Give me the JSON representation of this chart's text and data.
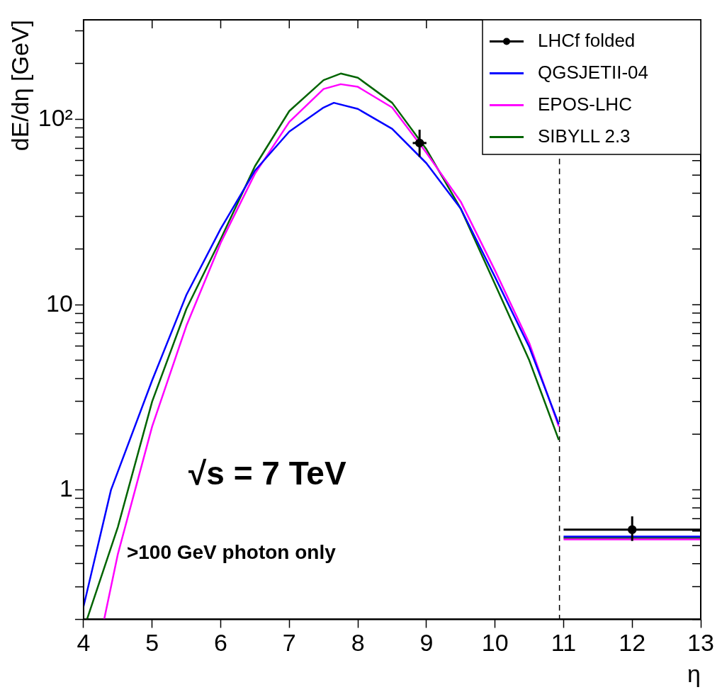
{
  "chart_data": {
    "type": "line",
    "xlabel": "η",
    "ylabel": "dE/dη [GeV]",
    "xlim": [
      4,
      13
    ],
    "xticks": [
      4,
      5,
      6,
      7,
      8,
      9,
      10,
      11,
      12,
      13
    ],
    "ylim": [
      0.2,
      345
    ],
    "log": "y",
    "yticks": [
      {
        "value": 0.2,
        "label": null
      },
      {
        "value": 0.3,
        "label": null
      },
      {
        "value": 0.4,
        "label": null
      },
      {
        "value": 0.5,
        "label": null
      },
      {
        "value": 0.6,
        "label": null
      },
      {
        "value": 0.7,
        "label": null
      },
      {
        "value": 0.8,
        "label": null
      },
      {
        "value": 0.9,
        "label": null
      },
      1,
      {
        "value": 2,
        "label": null
      },
      {
        "value": 3,
        "label": null
      },
      {
        "value": 4,
        "label": null
      },
      {
        "value": 5,
        "label": null
      },
      {
        "value": 6,
        "label": null
      },
      {
        "value": 7,
        "label": null
      },
      {
        "value": 8,
        "label": null
      },
      {
        "value": 9,
        "label": null
      },
      10,
      {
        "value": 20,
        "label": null
      },
      {
        "value": 30,
        "label": null
      },
      {
        "value": 40,
        "label": null
      },
      {
        "value": 50,
        "label": null
      },
      {
        "value": 60,
        "label": null
      },
      {
        "value": 70,
        "label": null
      },
      {
        "value": 80,
        "label": null
      },
      {
        "value": 90,
        "label": null
      },
      {
        "value": 100,
        "label": "10²"
      },
      {
        "value": 200,
        "label": null
      },
      {
        "value": 300,
        "label": null
      }
    ],
    "grid": false,
    "legend": "top right",
    "marker": "none",
    "line_style": "solid",
    "series": [
      {
        "name": "LHCf folded",
        "type": "scatter",
        "marker": "circle",
        "color": "#000000",
        "x": [
          8.9,
          12
        ],
        "values": [
          74.6,
          0.61
        ],
        "errors": [
          [
            62.8,
            88
          ],
          [
            0.53,
            0.72
          ]
        ],
        "xerrors": [
          0.1,
          1
        ]
      },
      {
        "name": "QGSJETII-04",
        "color": "#0000ff",
        "x": [
          4,
          4.4,
          5,
          5.5,
          6,
          6.5,
          7,
          7.5,
          7.65,
          8,
          8.5,
          9,
          9.5,
          10,
          10.5,
          10.93,
          10.97,
          11,
          13
        ],
        "values": [
          0.235,
          1.0,
          3.9,
          11.3,
          25.7,
          53,
          86,
          116,
          123,
          114,
          89,
          58,
          33,
          14.1,
          5.9,
          2.26,
          null,
          0.56,
          0.56
        ]
      },
      {
        "name": "EPOS-LHC",
        "color": "#ff00ff",
        "x": [
          4.3,
          4.5,
          5,
          5.5,
          6,
          6.5,
          7,
          7.5,
          7.75,
          8,
          8.5,
          9,
          9.5,
          10,
          10.5,
          10.93,
          10.97,
          11,
          13
        ],
        "values": [
          0.2,
          0.45,
          2.2,
          7.7,
          21.6,
          51,
          97,
          146,
          155,
          150,
          116,
          66,
          36,
          15.3,
          6.2,
          2.2,
          null,
          0.54,
          0.54
        ]
      },
      {
        "name": "SIBYLL 2.3",
        "color": "#006400",
        "x": [
          4.05,
          4.5,
          5,
          5.5,
          6,
          6.5,
          7,
          7.5,
          7.75,
          8,
          8.5,
          9,
          9.5,
          10,
          10.5,
          10.93,
          10.97,
          11,
          13
        ],
        "values": [
          0.2,
          0.63,
          3.0,
          9.5,
          22.6,
          56,
          111,
          163,
          177,
          168,
          123,
          69,
          33,
          12.9,
          5.0,
          1.86,
          null,
          0.55,
          0.55
        ]
      }
    ],
    "ref_lines": [
      {
        "axis": "x",
        "value": 10.94,
        "color": "#000000",
        "line_style": "dashed"
      }
    ],
    "annotations": [
      "√s = 7 TeV",
      ">100 GeV photon only"
    ]
  }
}
